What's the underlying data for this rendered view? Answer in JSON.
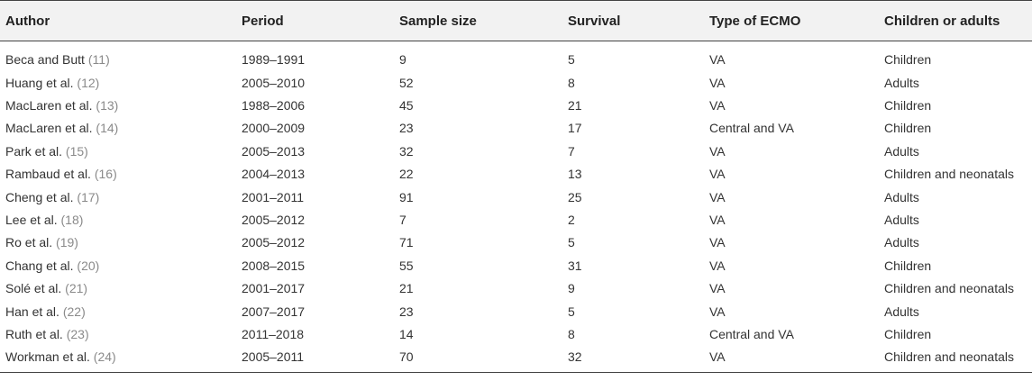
{
  "table": {
    "headers": [
      "Author",
      "Period",
      "Sample size",
      "Survival",
      "Type of ECMO",
      "Children or adults"
    ],
    "rows": [
      {
        "author": "Beca and Butt",
        "ref": "11",
        "period": "1989–1991",
        "sample": "9",
        "survival": "5",
        "ecmo": "VA",
        "population": "Children"
      },
      {
        "author": "Huang et al.",
        "ref": "12",
        "period": "2005–2010",
        "sample": "52",
        "survival": "8",
        "ecmo": "VA",
        "population": "Adults"
      },
      {
        "author": "MacLaren et al.",
        "ref": "13",
        "period": "1988–2006",
        "sample": "45",
        "survival": "21",
        "ecmo": "VA",
        "population": "Children"
      },
      {
        "author": "MacLaren et al.",
        "ref": "14",
        "period": "2000–2009",
        "sample": "23",
        "survival": "17",
        "ecmo": "Central and VA",
        "population": "Children"
      },
      {
        "author": "Park et al.",
        "ref": "15",
        "period": "2005–2013",
        "sample": "32",
        "survival": "7",
        "ecmo": "VA",
        "population": "Adults"
      },
      {
        "author": "Rambaud et al.",
        "ref": "16",
        "period": "2004–2013",
        "sample": "22",
        "survival": "13",
        "ecmo": "VA",
        "population": "Children and neonatals"
      },
      {
        "author": "Cheng et al.",
        "ref": "17",
        "period": "2001–2011",
        "sample": "91",
        "survival": "25",
        "ecmo": "VA",
        "population": "Adults"
      },
      {
        "author": "Lee et al.",
        "ref": "18",
        "period": "2005–2012",
        "sample": "7",
        "survival": "2",
        "ecmo": "VA",
        "population": "Adults"
      },
      {
        "author": "Ro et al.",
        "ref": "19",
        "period": "2005–2012",
        "sample": "71",
        "survival": "5",
        "ecmo": "VA",
        "population": "Adults"
      },
      {
        "author": "Chang et al.",
        "ref": "20",
        "period": "2008–2015",
        "sample": "55",
        "survival": "31",
        "ecmo": "VA",
        "population": "Children"
      },
      {
        "author": "Solé et al.",
        "ref": "21",
        "period": "2001–2017",
        "sample": "21",
        "survival": "9",
        "ecmo": "VA",
        "population": "Children and neonatals"
      },
      {
        "author": "Han et al.",
        "ref": "22",
        "period": "2007–2017",
        "sample": "23",
        "survival": "5",
        "ecmo": "VA",
        "population": "Adults"
      },
      {
        "author": "Ruth et al.",
        "ref": "23",
        "period": "2011–2018",
        "sample": "14",
        "survival": "8",
        "ecmo": "Central and VA",
        "population": "Children"
      },
      {
        "author": "Workman et al.",
        "ref": "24",
        "period": "2005–2011",
        "sample": "70",
        "survival": "32",
        "ecmo": "VA",
        "population": "Children and neonatals"
      }
    ]
  }
}
